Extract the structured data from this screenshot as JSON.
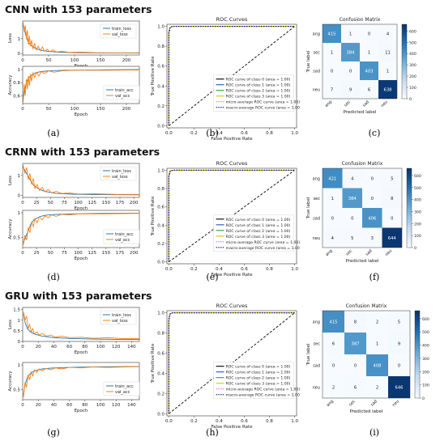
{
  "rows": [
    {
      "title": "CNN with 153 parameters",
      "captions": [
        "(a)",
        "(b)",
        "(c)"
      ],
      "loss": {
        "ylabel": "Loss",
        "xlabel": "Epoch",
        "xticks": [
          0,
          50,
          100,
          150,
          200
        ],
        "xmax": 225,
        "yticks": [
          0,
          1
        ],
        "ymin": -0.1,
        "ymax": 2.2,
        "legend": [
          "train_loss",
          "val_loss"
        ],
        "train_loss": [
          [
            1,
            1.9
          ],
          [
            4,
            1.5
          ],
          [
            8,
            1.0
          ],
          [
            12,
            0.7
          ],
          [
            18,
            0.5
          ],
          [
            25,
            0.35
          ],
          [
            35,
            0.22
          ],
          [
            50,
            0.14
          ],
          [
            70,
            0.09
          ],
          [
            100,
            0.06
          ],
          [
            150,
            0.04
          ],
          [
            225,
            0.03
          ]
        ],
        "val_loss": [
          [
            1,
            2.1
          ],
          [
            3,
            1.5
          ],
          [
            5,
            1.9
          ],
          [
            7,
            1.0
          ],
          [
            9,
            1.6
          ],
          [
            11,
            0.6
          ],
          [
            13,
            1.2
          ],
          [
            15,
            0.5
          ],
          [
            17,
            0.9
          ],
          [
            20,
            0.3
          ],
          [
            23,
            0.7
          ],
          [
            26,
            0.25
          ],
          [
            30,
            0.5
          ],
          [
            34,
            0.2
          ],
          [
            38,
            0.45
          ],
          [
            42,
            0.15
          ],
          [
            47,
            0.3
          ],
          [
            52,
            0.12
          ],
          [
            58,
            0.25
          ],
          [
            65,
            0.1
          ],
          [
            75,
            0.15
          ],
          [
            90,
            0.08
          ],
          [
            110,
            0.1
          ],
          [
            140,
            0.06
          ],
          [
            180,
            0.05
          ],
          [
            225,
            0.05
          ]
        ]
      },
      "acc": {
        "ylabel": "Accuracy",
        "xlabel": "Epoch",
        "xticks": [
          0,
          50,
          100,
          150,
          200
        ],
        "xmax": 225,
        "yticks": [
          0.6,
          0.8,
          1.0
        ],
        "ymin": 0.48,
        "ymax": 1.05,
        "legend": [
          "train_acc",
          "val_acc"
        ],
        "train_acc": [
          [
            1,
            0.55
          ],
          [
            4,
            0.7
          ],
          [
            8,
            0.82
          ],
          [
            12,
            0.88
          ],
          [
            18,
            0.92
          ],
          [
            25,
            0.95
          ],
          [
            35,
            0.97
          ],
          [
            50,
            0.98
          ],
          [
            80,
            0.99
          ],
          [
            150,
            0.995
          ],
          [
            225,
            1.0
          ]
        ],
        "val_acc": [
          [
            1,
            0.5
          ],
          [
            3,
            0.78
          ],
          [
            5,
            0.6
          ],
          [
            7,
            0.85
          ],
          [
            9,
            0.7
          ],
          [
            11,
            0.9
          ],
          [
            13,
            0.75
          ],
          [
            15,
            0.93
          ],
          [
            17,
            0.82
          ],
          [
            20,
            0.95
          ],
          [
            23,
            0.88
          ],
          [
            27,
            0.96
          ],
          [
            31,
            0.9
          ],
          [
            36,
            0.97
          ],
          [
            42,
            0.94
          ],
          [
            50,
            0.98
          ],
          [
            60,
            0.96
          ],
          [
            75,
            0.98
          ],
          [
            100,
            0.99
          ],
          [
            150,
            0.99
          ],
          [
            225,
            0.995
          ]
        ]
      },
      "roc": {
        "title": "ROC Curves",
        "xlabel": "False Positive Rate",
        "ylabel": "True Positive Rate",
        "ticks": [
          "0.0",
          "0.2",
          "0.4",
          "0.6",
          "0.8",
          "1.0"
        ],
        "legend": [
          "ROC curve of class 0 (area = 1.00)",
          "ROC curve of class 1 (area = 1.00)",
          "ROC curve of class 2 (area = 1.00)",
          "ROC curve of class 3 (area = 1.00)",
          "micro-average ROC curve (area = 1.00)",
          "macro-average ROC curve (area = 1.00)"
        ]
      },
      "cm": {
        "title": "Confusion Matrix",
        "xlabel": "Predicted label",
        "ylabel": "True label",
        "labels": [
          "ang",
          "sec",
          "sad",
          "neu"
        ],
        "matrix": [
          [
            415,
            1,
            0,
            4
          ],
          [
            1,
            384,
            1,
            11
          ],
          [
            0,
            0,
            403,
            1
          ],
          [
            7,
            9,
            6,
            638
          ]
        ],
        "colorbar": [
          0,
          100,
          200,
          300,
          400,
          500,
          600
        ]
      }
    },
    {
      "title": "CRNN with 153 parameters",
      "captions": [
        "(d)",
        "(e)",
        "(f)"
      ],
      "loss": {
        "ylabel": "Loss",
        "xlabel": "Epoch",
        "xticks": [
          0,
          25,
          50,
          75,
          100,
          125,
          150,
          175,
          200
        ],
        "xmax": 210,
        "yticks": [
          0,
          1
        ],
        "ymin": -0.1,
        "ymax": 1.6,
        "legend": [
          "train_loss",
          "val_loss"
        ],
        "train_loss": [
          [
            1,
            1.4
          ],
          [
            5,
            1.2
          ],
          [
            10,
            0.95
          ],
          [
            15,
            0.7
          ],
          [
            20,
            0.5
          ],
          [
            30,
            0.3
          ],
          [
            40,
            0.2
          ],
          [
            60,
            0.1
          ],
          [
            90,
            0.06
          ],
          [
            130,
            0.04
          ],
          [
            210,
            0.03
          ]
        ],
        "val_loss": [
          [
            1,
            1.5
          ],
          [
            4,
            1.1
          ],
          [
            7,
            1.4
          ],
          [
            10,
            0.8
          ],
          [
            13,
            1.1
          ],
          [
            16,
            0.55
          ],
          [
            19,
            0.85
          ],
          [
            22,
            0.35
          ],
          [
            26,
            0.55
          ],
          [
            30,
            0.25
          ],
          [
            35,
            0.4
          ],
          [
            40,
            0.18
          ],
          [
            46,
            0.3
          ],
          [
            52,
            0.12
          ],
          [
            60,
            0.2
          ],
          [
            70,
            0.1
          ],
          [
            85,
            0.12
          ],
          [
            100,
            0.07
          ],
          [
            130,
            0.08
          ],
          [
            170,
            0.05
          ],
          [
            210,
            0.05
          ]
        ]
      },
      "acc": {
        "ylabel": "Accuracy",
        "xlabel": "Epoch",
        "xticks": [
          0,
          25,
          50,
          75,
          100,
          125,
          150,
          175,
          200
        ],
        "xmax": 210,
        "yticks": [
          0.5,
          1.0
        ],
        "ymin": 0.3,
        "ymax": 1.05,
        "legend": [
          "train_acc",
          "val_acc"
        ],
        "train_acc": [
          [
            1,
            0.4
          ],
          [
            5,
            0.5
          ],
          [
            10,
            0.65
          ],
          [
            15,
            0.78
          ],
          [
            20,
            0.86
          ],
          [
            30,
            0.92
          ],
          [
            40,
            0.95
          ],
          [
            60,
            0.97
          ],
          [
            90,
            0.98
          ],
          [
            140,
            0.99
          ],
          [
            210,
            0.995
          ]
        ],
        "val_acc": [
          [
            1,
            0.35
          ],
          [
            4,
            0.55
          ],
          [
            7,
            0.45
          ],
          [
            10,
            0.7
          ],
          [
            13,
            0.6
          ],
          [
            16,
            0.82
          ],
          [
            19,
            0.72
          ],
          [
            22,
            0.88
          ],
          [
            26,
            0.8
          ],
          [
            30,
            0.92
          ],
          [
            35,
            0.86
          ],
          [
            40,
            0.94
          ],
          [
            46,
            0.9
          ],
          [
            52,
            0.96
          ],
          [
            60,
            0.93
          ],
          [
            70,
            0.97
          ],
          [
            85,
            0.96
          ],
          [
            100,
            0.98
          ],
          [
            140,
            0.98
          ],
          [
            210,
            0.99
          ]
        ]
      },
      "roc": {
        "title": "ROC Curves",
        "xlabel": "False Positive Rate",
        "ylabel": "True Positive Rate",
        "ticks": [
          "0.0",
          "0.2",
          "0.4",
          "0.6",
          "0.8",
          "1.0"
        ],
        "legend": [
          "ROC curve of class 0 (area = 1.00)",
          "ROC curve of class 1 (area = 1.00)",
          "ROC curve of class 2 (area = 1.00)",
          "ROC curve of class 3 (area = 1.00)",
          "micro-average ROC curve (area = 1.00)",
          "macro-average ROC curve (area = 1.00)"
        ]
      },
      "cm": {
        "title": "Confusion Matrix",
        "xlabel": "Predicted label",
        "ylabel": "True label",
        "labels": [
          "ang",
          "sec",
          "sad",
          "neu"
        ],
        "matrix": [
          [
            421,
            4,
            0,
            5
          ],
          [
            1,
            384,
            0,
            8
          ],
          [
            0,
            0,
            406,
            0
          ],
          [
            4,
            5,
            3,
            644
          ]
        ],
        "colorbar": [
          0,
          100,
          200,
          300,
          400,
          500,
          600
        ]
      }
    },
    {
      "title": "GRU with 153 parameters",
      "captions": [
        "(g)",
        "(h)",
        "(i)"
      ],
      "loss": {
        "ylabel": "Loss",
        "xlabel": "Epoch",
        "xticks": [
          0,
          20,
          40,
          60,
          80,
          100,
          120,
          140
        ],
        "xmax": 150,
        "yticks": [
          0.0,
          0.5,
          1.0,
          1.5
        ],
        "ymin": 0.0,
        "ymax": 1.6,
        "legend": [
          "train_loss",
          "val_loss"
        ],
        "train_loss": [
          [
            1,
            1.3
          ],
          [
            3,
            0.9
          ],
          [
            6,
            0.6
          ],
          [
            10,
            0.45
          ],
          [
            15,
            0.35
          ],
          [
            25,
            0.25
          ],
          [
            40,
            0.18
          ],
          [
            60,
            0.14
          ],
          [
            90,
            0.11
          ],
          [
            120,
            0.1
          ],
          [
            150,
            0.09
          ]
        ],
        "val_loss": [
          [
            1,
            1.4
          ],
          [
            3,
            1.0
          ],
          [
            5,
            1.2
          ],
          [
            7,
            0.6
          ],
          [
            9,
            0.8
          ],
          [
            11,
            0.45
          ],
          [
            13,
            0.6
          ],
          [
            15,
            0.35
          ],
          [
            18,
            0.45
          ],
          [
            21,
            0.3
          ],
          [
            25,
            0.38
          ],
          [
            30,
            0.25
          ],
          [
            36,
            0.3
          ],
          [
            42,
            0.2
          ],
          [
            50,
            0.25
          ],
          [
            60,
            0.18
          ],
          [
            75,
            0.2
          ],
          [
            90,
            0.15
          ],
          [
            110,
            0.17
          ],
          [
            130,
            0.13
          ],
          [
            150,
            0.14
          ]
        ]
      },
      "acc": {
        "ylabel": "Accuracy",
        "xlabel": "Epoch",
        "xticks": [
          0,
          20,
          40,
          60,
          80,
          100,
          120,
          140
        ],
        "xmax": 150,
        "yticks": [
          0.5,
          1.0
        ],
        "ymin": 0.3,
        "ymax": 1.05,
        "legend": [
          "train_acc",
          "val_acc"
        ],
        "train_acc": [
          [
            1,
            0.4
          ],
          [
            3,
            0.6
          ],
          [
            6,
            0.75
          ],
          [
            10,
            0.83
          ],
          [
            15,
            0.88
          ],
          [
            25,
            0.92
          ],
          [
            40,
            0.94
          ],
          [
            60,
            0.95
          ],
          [
            90,
            0.96
          ],
          [
            120,
            0.965
          ],
          [
            150,
            0.97
          ]
        ],
        "val_acc": [
          [
            1,
            0.35
          ],
          [
            3,
            0.65
          ],
          [
            5,
            0.55
          ],
          [
            7,
            0.8
          ],
          [
            9,
            0.7
          ],
          [
            11,
            0.86
          ],
          [
            13,
            0.78
          ],
          [
            15,
            0.9
          ],
          [
            18,
            0.85
          ],
          [
            21,
            0.92
          ],
          [
            25,
            0.88
          ],
          [
            30,
            0.93
          ],
          [
            36,
            0.9
          ],
          [
            42,
            0.94
          ],
          [
            50,
            0.92
          ],
          [
            60,
            0.95
          ],
          [
            75,
            0.94
          ],
          [
            90,
            0.96
          ],
          [
            110,
            0.95
          ],
          [
            130,
            0.96
          ],
          [
            150,
            0.965
          ]
        ]
      },
      "roc": {
        "title": "ROC Curves",
        "xlabel": "False Positive Rate",
        "ylabel": "True Positive Rate",
        "ticks": [
          "0.0",
          "0.2",
          "0.4",
          "0.6",
          "0.8",
          "1.0"
        ],
        "legend": [
          "ROC curve of class 0 (area = 1.00)",
          "ROC curve of class 1 (area = 1.00)",
          "ROC curve of class 2 (area = 1.00)",
          "ROC curve of class 3 (area = 1.00)",
          "micro-average ROC curve (area = 1.00)",
          "macro-average ROC curve (area = 1.00)"
        ]
      },
      "cm": {
        "title": "Confusion Matrix",
        "xlabel": "Predicted label",
        "ylabel": "True label",
        "labels": [
          "ang",
          "sec",
          "sad",
          "neu"
        ],
        "matrix": [
          [
            415,
            8,
            2,
            5
          ],
          [
            6,
            387,
            1,
            9
          ],
          [
            0,
            0,
            408,
            0
          ],
          [
            2,
            6,
            2,
            646
          ]
        ],
        "colorbar": [
          0,
          100,
          200,
          300,
          400,
          500,
          600
        ]
      }
    }
  ],
  "chart_data": [
    {
      "type": "line",
      "title": "",
      "xlabel": "Epoch",
      "ylabel": "Loss",
      "series": [
        {
          "name": "train_loss"
        },
        {
          "name": "val_loss"
        }
      ]
    },
    {
      "type": "line",
      "title": "",
      "xlabel": "Epoch",
      "ylabel": "Accuracy",
      "series": [
        {
          "name": "train_acc"
        },
        {
          "name": "val_acc"
        }
      ]
    },
    {
      "type": "line",
      "title": "ROC Curves",
      "xlabel": "False Positive Rate",
      "ylabel": "True Positive Rate",
      "xlim": [
        0,
        1
      ],
      "ylim": [
        0,
        1
      ]
    },
    {
      "type": "heatmap",
      "title": "Confusion Matrix",
      "xlabel": "Predicted label",
      "ylabel": "True label",
      "categories": [
        "ang",
        "sec",
        "sad",
        "neu"
      ]
    }
  ],
  "colors": {
    "train": "#1f77b4",
    "val": "#ff7f0e",
    "roc_class0": "#000000",
    "roc_class1": "#1f4fd0",
    "roc_class2": "#2ca02c",
    "roc_class3": "#e0c000",
    "roc_micro": "#e377c2",
    "roc_macro": "#1a1a80",
    "cm_low": "#f7fbff",
    "cm_high": "#08306b"
  }
}
